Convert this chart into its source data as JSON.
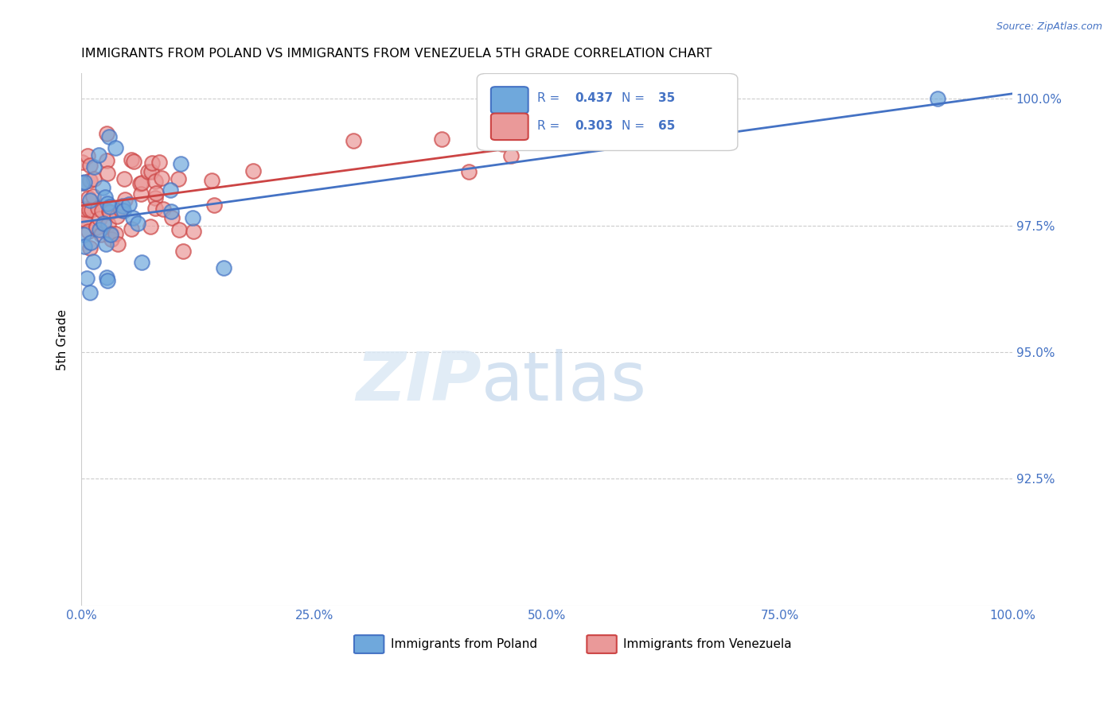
{
  "title": "IMMIGRANTS FROM POLAND VS IMMIGRANTS FROM VENEZUELA 5TH GRADE CORRELATION CHART",
  "source": "Source: ZipAtlas.com",
  "ylabel": "5th Grade",
  "x_min": 0.0,
  "x_max": 1.0,
  "y_min": 0.9,
  "y_max": 1.005,
  "y_tick_values": [
    1.0,
    0.975,
    0.95,
    0.925
  ],
  "y_tick_labels": [
    "100.0%",
    "97.5%",
    "95.0%",
    "92.5%"
  ],
  "poland_color": "#6fa8dc",
  "venezuela_color": "#ea9999",
  "poland_line_color": "#4472c4",
  "venezuela_line_color": "#cc4444",
  "poland_R": 0.437,
  "poland_N": 35,
  "venezuela_R": 0.303,
  "venezuela_N": 65,
  "legend_label_poland": "Immigrants from Poland",
  "legend_label_venezuela": "Immigrants from Venezuela",
  "watermark_zip": "ZIP",
  "watermark_atlas": "atlas",
  "background_color": "#ffffff",
  "grid_color": "#cccccc",
  "axis_color": "#4472c4"
}
